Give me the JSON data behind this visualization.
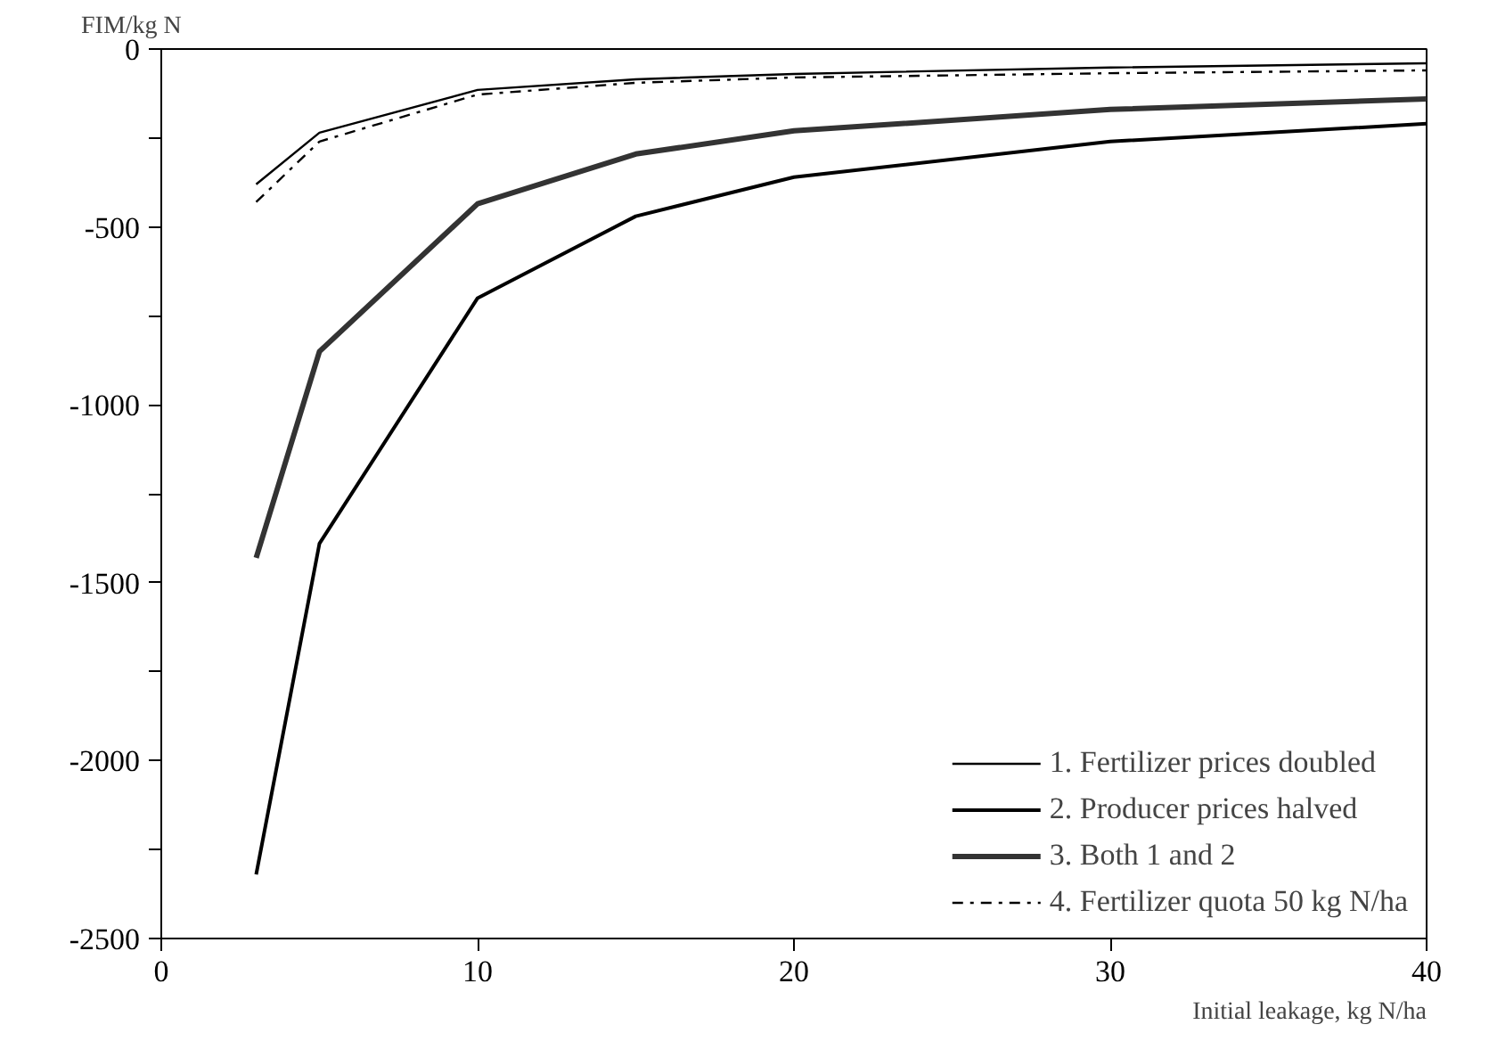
{
  "chart_data": {
    "type": "line",
    "xlabel": "Initial leakage, kg N/ha",
    "ylabel": "FIM/kg N",
    "x": [
      3,
      5,
      10,
      15,
      20,
      30,
      40
    ],
    "xlim": [
      0,
      40
    ],
    "xticks": [
      0,
      10,
      20,
      30,
      40
    ],
    "ylim": [
      -2500,
      0
    ],
    "yticks": [
      {
        "value": -2500,
        "label": "-2500"
      },
      {
        "value": -2250,
        "label": null
      },
      {
        "value": -2000,
        "label": "-2000"
      },
      {
        "value": -1750,
        "label": null
      },
      {
        "value": -1500,
        "label": "-1500"
      },
      {
        "value": -1250,
        "label": null
      },
      {
        "value": -1000,
        "label": "-1000"
      },
      {
        "value": -750,
        "label": null
      },
      {
        "value": -500,
        "label": "-500"
      },
      {
        "value": -250,
        "label": null
      },
      {
        "value": 0,
        "label": "0"
      }
    ],
    "series": [
      {
        "name": "1. Fertilizer prices doubled",
        "color": "#000000",
        "line_style": "solid",
        "values": [
          -380,
          -235,
          -115,
          -85,
          -70,
          -52,
          -40
        ]
      },
      {
        "name": "2. Producer prices halved",
        "color": "#000000",
        "line_style": "solid",
        "values": [
          -2320,
          -1390,
          -700,
          -470,
          -360,
          -260,
          -210
        ]
      },
      {
        "name": "3. Both 1 and 2",
        "color": "#333333",
        "line_style": "solid",
        "values": [
          -1430,
          -850,
          -435,
          -295,
          -230,
          -170,
          -140
        ]
      },
      {
        "name": "4. Fertilizer quota 50 kg N/ha",
        "color": "#000000",
        "line_style": "dashdot",
        "values": [
          -430,
          -260,
          -128,
          -95,
          -80,
          -68,
          -60
        ]
      }
    ],
    "legend": "bottom right",
    "grid": false,
    "marker": "none"
  }
}
